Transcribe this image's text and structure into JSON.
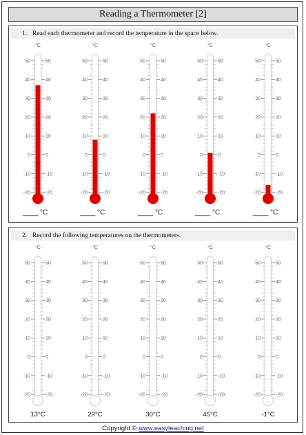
{
  "title": "Reading a Thermometer [2]",
  "unit_label": "°C",
  "scale": {
    "min": -20,
    "max": 50,
    "major_ticks": [
      50,
      40,
      30,
      20,
      10,
      0,
      -10,
      -20
    ],
    "major_tick_labels_left": [
      "50",
      "40",
      "30",
      "20",
      "10",
      "0",
      "-10",
      "-20"
    ],
    "major_tick_labels_right": [
      "50",
      "40",
      "30",
      "20",
      "10",
      "0",
      "-10",
      "-20"
    ]
  },
  "colors": {
    "mercury": "#e00000",
    "title_bar": "#dcdcdc",
    "section_header": "#efefef"
  },
  "section1": {
    "number": "1.",
    "instruction": "Read each thermometer and record the temperature in the space below.",
    "thermometers": [
      {
        "reading": 37,
        "answer_label": "____ °C"
      },
      {
        "reading": 8,
        "answer_label": "____ °C"
      },
      {
        "reading": 22,
        "answer_label": "____ °C"
      },
      {
        "reading": 1,
        "answer_label": "____ °C"
      },
      {
        "reading": -16,
        "answer_label": "____ °C"
      }
    ]
  },
  "section2": {
    "number": "2.",
    "instruction": "Record the following temperatures on the thermometers.",
    "thermometers": [
      {
        "target_label": "13°C"
      },
      {
        "target_label": "29°C"
      },
      {
        "target_label": "30°C"
      },
      {
        "target_label": "45°C"
      },
      {
        "target_label": "-1°C"
      }
    ]
  },
  "copyright": {
    "prefix": "Copyright ©",
    "link_text": "www.easyteaching.net"
  }
}
